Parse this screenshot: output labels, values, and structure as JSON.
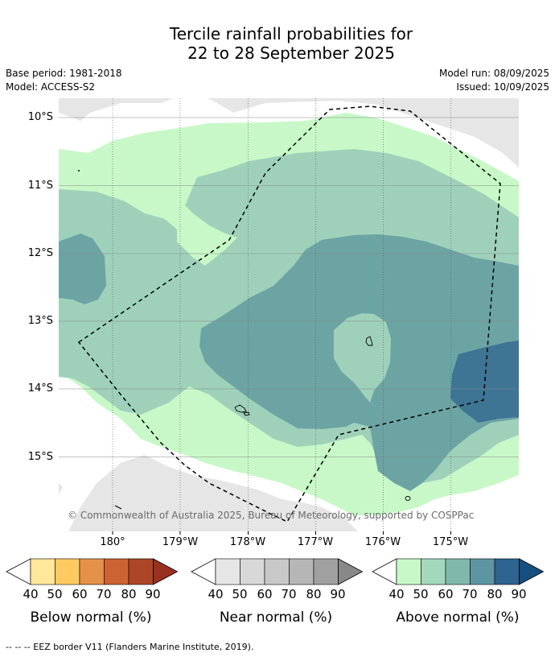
{
  "title_line1": "Tercile rainfall probabilities for",
  "title_line2": "22 to 28 September 2025",
  "base_period": "Base period: 1981-2018",
  "model": "Model: ACCESS-S2",
  "model_run": "Model run: 08/09/2025",
  "issued": "Issued: 10/09/2025",
  "lat_labels": [
    "10°S",
    "11°S",
    "12°S",
    "13°S",
    "14°S",
    "15°S"
  ],
  "lon_labels": [
    "180°",
    "179°W",
    "178°W",
    "177°W",
    "176°W",
    "175°W"
  ],
  "copyright": "© Commonwealth of Australia 2025, Bureau of Meteorology, supported by COSPPac",
  "colorbars": [
    {
      "label": "Below normal (%)",
      "ticks": [
        "40",
        "50",
        "60",
        "70",
        "80",
        "90"
      ],
      "colors": [
        "#ffffff",
        "#ffe89a",
        "#ffca61",
        "#e5914a",
        "#cc6332",
        "#ad4626",
        "#9a3020"
      ]
    },
    {
      "label": "Near normal (%)",
      "ticks": [
        "40",
        "50",
        "60",
        "70",
        "80",
        "90"
      ],
      "colors": [
        "#ffffff",
        "#e6e6e6",
        "#d8d8d8",
        "#c8c8c8",
        "#b6b6b6",
        "#a0a0a0",
        "#888888"
      ]
    },
    {
      "label": "Above normal (%)",
      "ticks": [
        "40",
        "50",
        "60",
        "70",
        "80",
        "90"
      ],
      "colors": [
        "#ffffff",
        "#c8f8c8",
        "#a4d8bc",
        "#80b8ac",
        "#5e95a2",
        "#2f6390",
        "#164e80"
      ]
    }
  ],
  "footnote": "-- -- -- EEZ border V11 (Flanders Marine Institute, 2019).",
  "map_colors": {
    "near_normal": "#e6e6e6",
    "above_50": "#c8f8c8",
    "above_60": "#9fd1ba",
    "above_70": "#6ca4a4",
    "above_80": "#3e7494"
  }
}
